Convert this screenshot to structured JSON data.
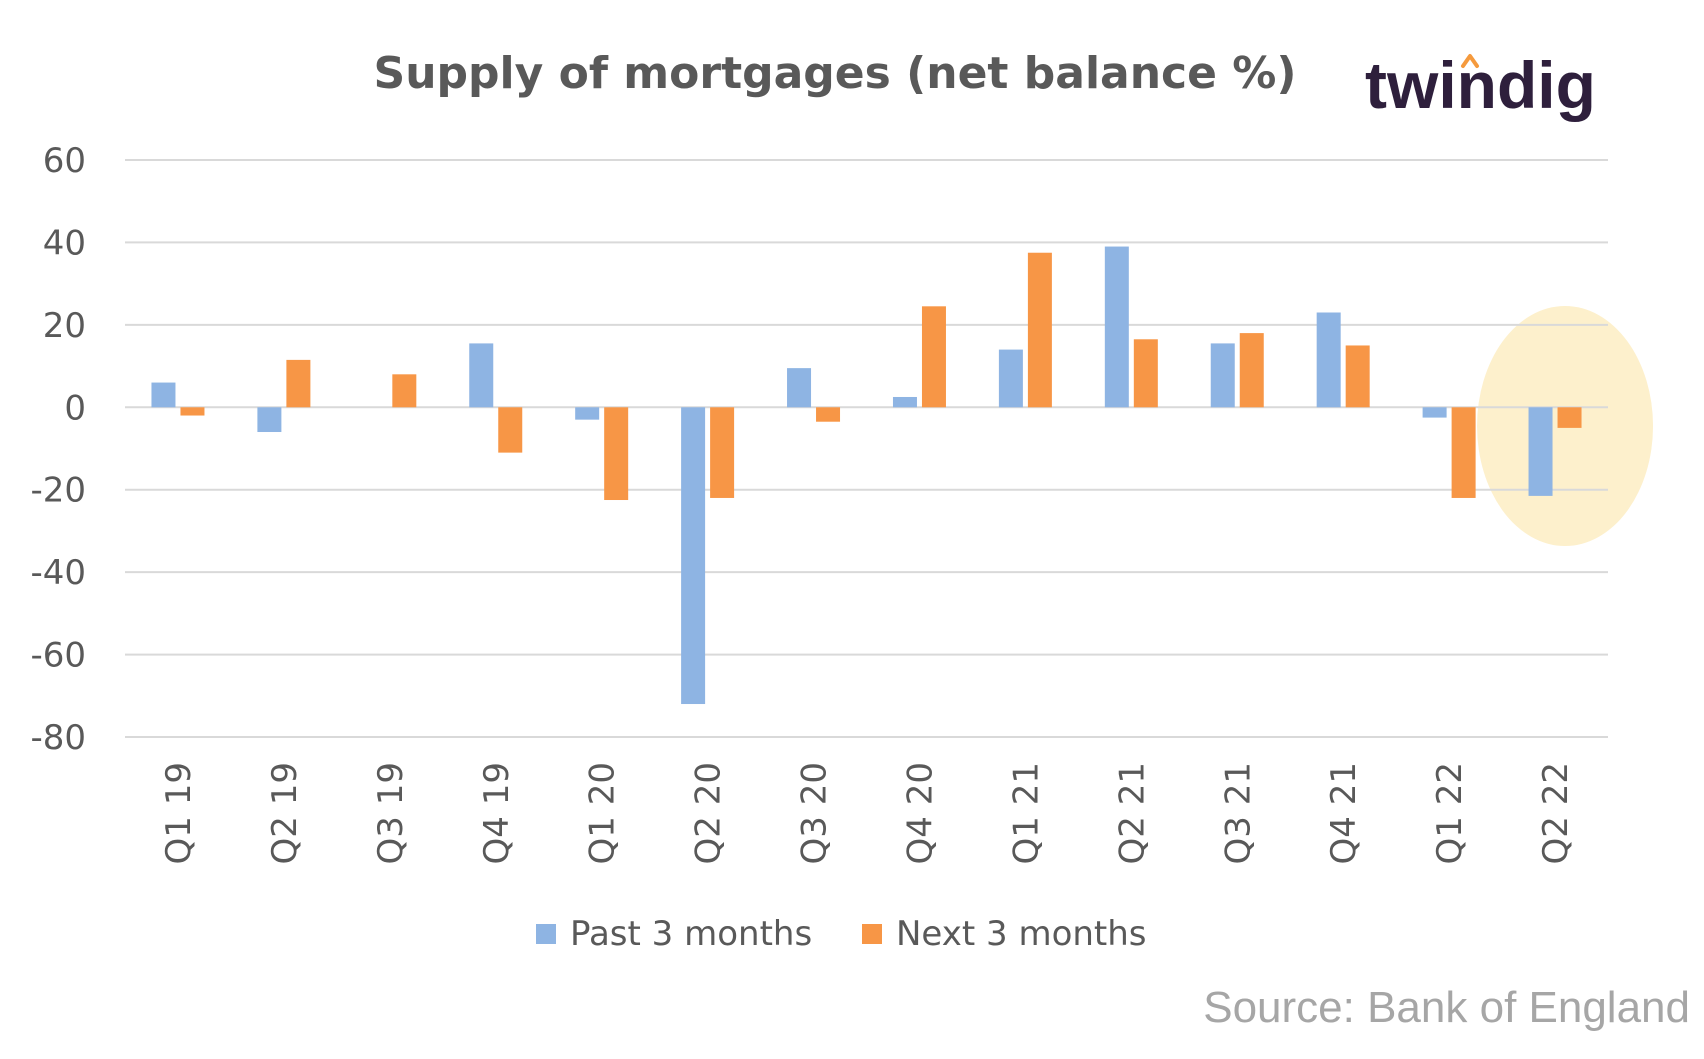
{
  "brand": {
    "text": "twindig",
    "dot_color": "#f59a3d",
    "text_color": "#2e1f3c"
  },
  "source": "Source: Bank of England",
  "chart_data": {
    "type": "bar",
    "title": "Supply of mortgages (net balance %)",
    "xlabel": "",
    "ylabel": "",
    "categories": [
      "Q1 19",
      "Q2 19",
      "Q3 19",
      "Q4 19",
      "Q1 20",
      "Q2 20",
      "Q3 20",
      "Q4 20",
      "Q1 21",
      "Q2 21",
      "Q3 21",
      "Q4 21",
      "Q1 22",
      "Q2 22"
    ],
    "series": [
      {
        "name": "Past 3 months",
        "color": "#8eb4e3",
        "values": [
          6,
          -6,
          0,
          15.5,
          -3,
          -72,
          9.5,
          2.5,
          14,
          39,
          15.5,
          23,
          -2.5,
          -21.5
        ]
      },
      {
        "name": "Next 3 months",
        "color": "#f79646",
        "values": [
          -2,
          11.5,
          8,
          -11,
          -22.5,
          -22,
          -3.5,
          24.5,
          37.5,
          16.5,
          18,
          15,
          -22,
          -5
        ]
      }
    ],
    "ylim": [
      -80,
      60
    ],
    "yticks": [
      "60",
      "40",
      "20",
      "0",
      "-20",
      "-40",
      "-60",
      "-80"
    ],
    "grid": true,
    "legend": "bottom",
    "highlight": {
      "category": "Q2 22",
      "color": "#fdf0cc"
    }
  }
}
